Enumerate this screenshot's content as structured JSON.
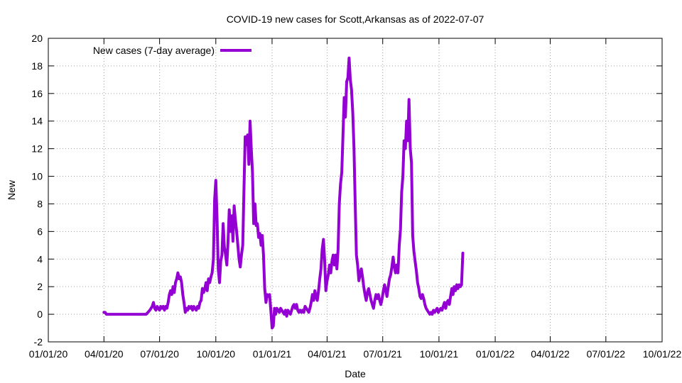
{
  "chart_data": {
    "type": "line",
    "title": "COVID-19 new cases for Scott,Arkansas as of 2022-07-07",
    "xlabel": "Date",
    "ylabel": "New",
    "xlim": [
      0,
      1004
    ],
    "ylim": [
      -2,
      20
    ],
    "x_unit": "days since 01/01/20",
    "x_ticks": [
      {
        "value": 0,
        "label": "01/01/20"
      },
      {
        "value": 91,
        "label": "04/01/20"
      },
      {
        "value": 182,
        "label": "07/01/20"
      },
      {
        "value": 274,
        "label": "10/01/20"
      },
      {
        "value": 366,
        "label": "01/01/21"
      },
      {
        "value": 456,
        "label": "04/01/21"
      },
      {
        "value": 547,
        "label": "07/01/21"
      },
      {
        "value": 639,
        "label": "10/01/21"
      },
      {
        "value": 731,
        "label": "01/01/22"
      },
      {
        "value": 821,
        "label": "04/01/22"
      },
      {
        "value": 912,
        "label": "07/01/22"
      },
      {
        "value": 1004,
        "label": "10/01/22"
      }
    ],
    "y_ticks": [
      -2,
      0,
      2,
      4,
      6,
      8,
      10,
      12,
      14,
      16,
      18,
      20
    ],
    "grid": true,
    "legend_position": "top-left",
    "series": [
      {
        "name": "New cases (7-day average)",
        "color": "#9400d3",
        "points": [
          [
            91,
            0.14
          ],
          [
            93,
            0.14
          ],
          [
            95,
            0.0
          ],
          [
            120,
            0.0
          ],
          [
            140,
            0.0
          ],
          [
            160,
            0.0
          ],
          [
            163,
            0.14
          ],
          [
            166,
            0.3
          ],
          [
            168,
            0.43
          ],
          [
            170,
            0.57
          ],
          [
            172,
            0.86
          ],
          [
            174,
            0.43
          ],
          [
            176,
            0.3
          ],
          [
            178,
            0.57
          ],
          [
            180,
            0.43
          ],
          [
            182,
            0.3
          ],
          [
            184,
            0.57
          ],
          [
            186,
            0.43
          ],
          [
            188,
            0.57
          ],
          [
            190,
            0.3
          ],
          [
            192,
            0.57
          ],
          [
            194,
            0.43
          ],
          [
            196,
            0.86
          ],
          [
            198,
            1.43
          ],
          [
            200,
            1.71
          ],
          [
            202,
            1.43
          ],
          [
            204,
            2.0
          ],
          [
            206,
            1.57
          ],
          [
            208,
            2.29
          ],
          [
            210,
            2.57
          ],
          [
            212,
            3.0
          ],
          [
            214,
            2.57
          ],
          [
            216,
            2.71
          ],
          [
            218,
            2.29
          ],
          [
            220,
            1.43
          ],
          [
            222,
            0.86
          ],
          [
            224,
            0.14
          ],
          [
            226,
            0.43
          ],
          [
            228,
            0.3
          ],
          [
            230,
            0.57
          ],
          [
            232,
            0.43
          ],
          [
            234,
            0.57
          ],
          [
            236,
            0.3
          ],
          [
            238,
            0.57
          ],
          [
            240,
            0.43
          ],
          [
            242,
            0.3
          ],
          [
            244,
            0.57
          ],
          [
            246,
            0.43
          ],
          [
            248,
            0.86
          ],
          [
            250,
            1.0
          ],
          [
            252,
            1.86
          ],
          [
            254,
            1.57
          ],
          [
            256,
            1.86
          ],
          [
            258,
            2.29
          ],
          [
            260,
            1.71
          ],
          [
            262,
            2.57
          ],
          [
            264,
            2.29
          ],
          [
            266,
            2.71
          ],
          [
            268,
            3.0
          ],
          [
            270,
            4.0
          ],
          [
            272,
            8.29
          ],
          [
            274,
            9.71
          ],
          [
            276,
            7.0
          ],
          [
            278,
            3.29
          ],
          [
            280,
            2.29
          ],
          [
            282,
            3.86
          ],
          [
            284,
            4.29
          ],
          [
            286,
            6.57
          ],
          [
            288,
            4.86
          ],
          [
            290,
            4.29
          ],
          [
            292,
            3.57
          ],
          [
            294,
            5.29
          ],
          [
            296,
            7.57
          ],
          [
            298,
            6.0
          ],
          [
            300,
            7.14
          ],
          [
            302,
            5.29
          ],
          [
            304,
            7.86
          ],
          [
            306,
            6.86
          ],
          [
            308,
            6.0
          ],
          [
            310,
            5.0
          ],
          [
            312,
            4.0
          ],
          [
            314,
            3.43
          ],
          [
            316,
            4.29
          ],
          [
            318,
            5.0
          ],
          [
            320,
            9.0
          ],
          [
            322,
            12.86
          ],
          [
            324,
            12.29
          ],
          [
            326,
            13.0
          ],
          [
            328,
            10.86
          ],
          [
            330,
            14.0
          ],
          [
            332,
            12.0
          ],
          [
            334,
            10.29
          ],
          [
            336,
            6.57
          ],
          [
            338,
            8.0
          ],
          [
            340,
            6.43
          ],
          [
            342,
            6.57
          ],
          [
            344,
            5.57
          ],
          [
            346,
            5.86
          ],
          [
            348,
            5.0
          ],
          [
            350,
            5.71
          ],
          [
            352,
            4.29
          ],
          [
            354,
            1.86
          ],
          [
            356,
            0.86
          ],
          [
            358,
            1.43
          ],
          [
            360,
            1.29
          ],
          [
            362,
            1.43
          ],
          [
            364,
            0.29
          ],
          [
            366,
            -1.0
          ],
          [
            368,
            -0.86
          ],
          [
            370,
            0.43
          ],
          [
            372,
            0.0
          ],
          [
            374,
            0.43
          ],
          [
            376,
            0.29
          ],
          [
            378,
            0.14
          ],
          [
            380,
            0.43
          ],
          [
            382,
            0.29
          ],
          [
            384,
            0.14
          ],
          [
            386,
            0.0
          ],
          [
            388,
            0.29
          ],
          [
            390,
            -0.14
          ],
          [
            392,
            0.29
          ],
          [
            394,
            0.14
          ],
          [
            396,
            0.0
          ],
          [
            398,
            0.29
          ],
          [
            400,
            0.57
          ],
          [
            402,
            0.71
          ],
          [
            404,
            0.43
          ],
          [
            406,
            0.71
          ],
          [
            408,
            0.29
          ],
          [
            410,
            0.14
          ],
          [
            412,
            0.29
          ],
          [
            414,
            0.14
          ],
          [
            416,
            0.29
          ],
          [
            418,
            0.14
          ],
          [
            420,
            0.57
          ],
          [
            422,
            0.43
          ],
          [
            424,
            0.29
          ],
          [
            426,
            0.14
          ],
          [
            428,
            0.43
          ],
          [
            430,
            0.86
          ],
          [
            432,
            1.43
          ],
          [
            434,
            1.0
          ],
          [
            436,
            1.71
          ],
          [
            438,
            1.29
          ],
          [
            440,
            1.0
          ],
          [
            442,
            1.71
          ],
          [
            444,
            2.57
          ],
          [
            446,
            3.29
          ],
          [
            448,
            4.71
          ],
          [
            450,
            5.43
          ],
          [
            452,
            3.86
          ],
          [
            454,
            1.71
          ],
          [
            456,
            2.43
          ],
          [
            458,
            2.86
          ],
          [
            460,
            3.57
          ],
          [
            462,
            3.0
          ],
          [
            464,
            3.86
          ],
          [
            466,
            4.29
          ],
          [
            468,
            3.57
          ],
          [
            470,
            4.29
          ],
          [
            472,
            3.29
          ],
          [
            474,
            4.71
          ],
          [
            476,
            8.0
          ],
          [
            478,
            9.43
          ],
          [
            480,
            10.29
          ],
          [
            482,
            13.0
          ],
          [
            484,
            15.71
          ],
          [
            486,
            14.29
          ],
          [
            488,
            16.86
          ],
          [
            490,
            17.14
          ],
          [
            492,
            18.57
          ],
          [
            494,
            17.0
          ],
          [
            496,
            16.29
          ],
          [
            498,
            14.57
          ],
          [
            500,
            12.0
          ],
          [
            502,
            8.0
          ],
          [
            504,
            4.29
          ],
          [
            506,
            3.57
          ],
          [
            508,
            2.43
          ],
          [
            510,
            2.86
          ],
          [
            512,
            3.29
          ],
          [
            514,
            2.71
          ],
          [
            516,
            2.0
          ],
          [
            518,
            1.43
          ],
          [
            520,
            1.0
          ],
          [
            522,
            1.57
          ],
          [
            524,
            1.86
          ],
          [
            526,
            1.43
          ],
          [
            528,
            1.0
          ],
          [
            530,
            0.71
          ],
          [
            532,
            0.43
          ],
          [
            534,
            1.0
          ],
          [
            536,
            1.43
          ],
          [
            538,
            1.14
          ],
          [
            540,
            1.43
          ],
          [
            542,
            1.0
          ],
          [
            544,
            0.71
          ],
          [
            546,
            1.14
          ],
          [
            548,
            1.71
          ],
          [
            550,
            2.14
          ],
          [
            552,
            1.71
          ],
          [
            554,
            1.29
          ],
          [
            556,
            2.0
          ],
          [
            558,
            2.57
          ],
          [
            560,
            2.86
          ],
          [
            562,
            3.43
          ],
          [
            564,
            4.14
          ],
          [
            566,
            3.43
          ],
          [
            568,
            3.0
          ],
          [
            570,
            3.57
          ],
          [
            572,
            3.0
          ],
          [
            574,
            5.0
          ],
          [
            576,
            6.14
          ],
          [
            578,
            8.86
          ],
          [
            580,
            10.0
          ],
          [
            582,
            12.57
          ],
          [
            584,
            12.0
          ],
          [
            586,
            14.0
          ],
          [
            588,
            12.57
          ],
          [
            590,
            15.57
          ],
          [
            592,
            12.0
          ],
          [
            594,
            11.0
          ],
          [
            596,
            5.71
          ],
          [
            598,
            4.57
          ],
          [
            600,
            3.86
          ],
          [
            602,
            3.14
          ],
          [
            604,
            2.29
          ],
          [
            606,
            1.86
          ],
          [
            608,
            1.29
          ],
          [
            610,
            1.14
          ],
          [
            612,
            1.43
          ],
          [
            614,
            1.14
          ],
          [
            616,
            0.71
          ],
          [
            618,
            0.43
          ],
          [
            620,
            0.29
          ],
          [
            622,
            0.14
          ],
          [
            624,
            0.0
          ],
          [
            626,
            0.14
          ],
          [
            628,
            0.0
          ],
          [
            630,
            0.29
          ],
          [
            632,
            0.14
          ],
          [
            634,
            0.29
          ],
          [
            636,
            0.43
          ],
          [
            638,
            0.14
          ],
          [
            640,
            0.29
          ],
          [
            642,
            0.43
          ],
          [
            644,
            0.29
          ],
          [
            646,
            0.57
          ],
          [
            648,
            0.86
          ],
          [
            650,
            0.43
          ],
          [
            652,
            0.86
          ],
          [
            654,
            1.0
          ],
          [
            656,
            0.71
          ],
          [
            658,
            1.29
          ],
          [
            660,
            1.86
          ],
          [
            662,
            1.43
          ],
          [
            664,
            2.0
          ],
          [
            666,
            1.71
          ],
          [
            668,
            2.14
          ],
          [
            670,
            1.86
          ],
          [
            672,
            2.14
          ],
          [
            674,
            2.0
          ],
          [
            676,
            2.14
          ],
          [
            678,
            4.43
          ]
        ]
      }
    ]
  }
}
